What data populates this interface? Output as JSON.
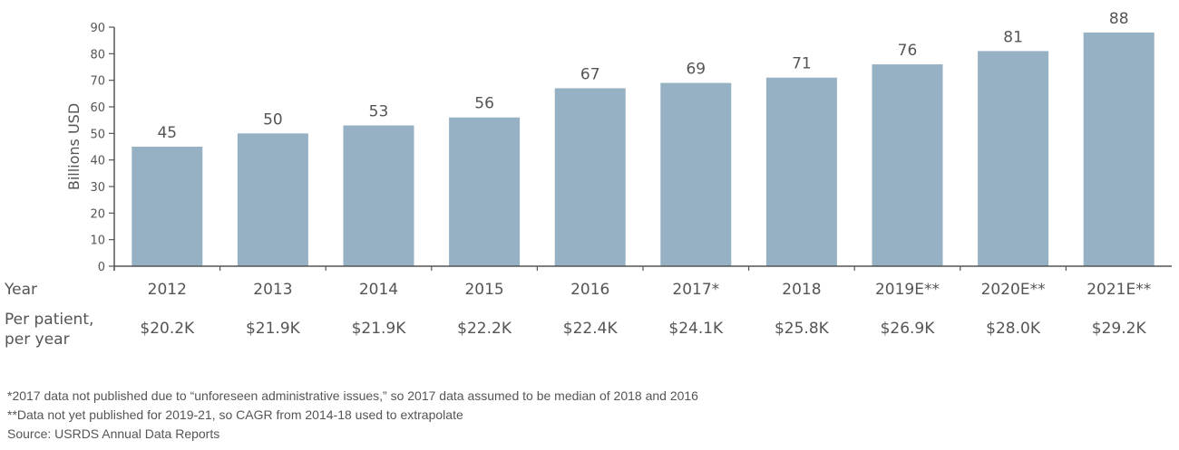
{
  "chart_data": {
    "type": "bar",
    "ylabel": "Billions USD",
    "ylim": [
      0,
      90
    ],
    "yticks": [
      0,
      10,
      20,
      30,
      40,
      50,
      60,
      70,
      80,
      90
    ],
    "grid": false,
    "bar_color": "#97b1c4",
    "row_labels": {
      "year": "Year",
      "per_patient_1": "Per patient,",
      "per_patient_2": "per year"
    },
    "categories": [
      "2012",
      "2013",
      "2014",
      "2015",
      "2016",
      "2017*",
      "2018",
      "2019E**",
      "2020E**",
      "2021E**"
    ],
    "values": [
      45,
      50,
      53,
      56,
      67,
      69,
      71,
      76,
      81,
      88
    ],
    "per_patient": [
      "$20.2K",
      "$21.9K",
      "$21.9K",
      "$22.2K",
      "$22.4K",
      "$24.1K",
      "$25.8K",
      "$26.9K",
      "$28.0K",
      "$29.2K"
    ]
  },
  "footnotes": [
    "*2017 data not published due to “unforeseen administrative issues,” so 2017 data assumed to be median of 2018 and 2016",
    "**Data not yet published for 2019-21, so CAGR from 2014-18 used to extrapolate",
    "Source: USRDS Annual Data Reports"
  ]
}
